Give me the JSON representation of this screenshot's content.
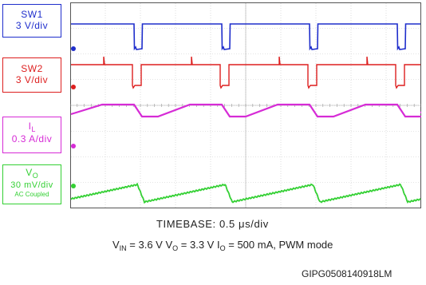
{
  "chart_data": {
    "type": "line",
    "time_base": "0.5 μs/div",
    "channels": [
      {
        "id": "sw1",
        "name": "SW1",
        "scale": "3 V/div",
        "color": "#1f2ecc"
      },
      {
        "id": "sw2",
        "name": "SW2",
        "scale": "3 V/div",
        "color": "#dd1f1f"
      },
      {
        "id": "il",
        "name": "I",
        "name_sub": "L",
        "scale": "0.3 A/div",
        "color": "#d62bd6"
      },
      {
        "id": "vo",
        "name": "V",
        "name_sub": "O",
        "scale": "30 mV/div",
        "coupling": "AC Coupled",
        "color": "#34d034"
      }
    ],
    "divisions": {
      "x": 10,
      "y": 8
    },
    "grid": true
  },
  "caption": {
    "timebase_label": "TIMEBASE:",
    "timebase_value": "0.5 μs/div",
    "conditions": {
      "vin_sym": "V",
      "vin_sub": "IN",
      "vin_val": "= 3.6 V",
      "vo_sym": "V",
      "vo_sub": "O",
      "vo_val": "= 3.3 V",
      "io_sym": "I",
      "io_sub": "O",
      "io_val": "= 500 mA, PWM mode"
    },
    "figure_id": "GIPG0508140918LM"
  }
}
